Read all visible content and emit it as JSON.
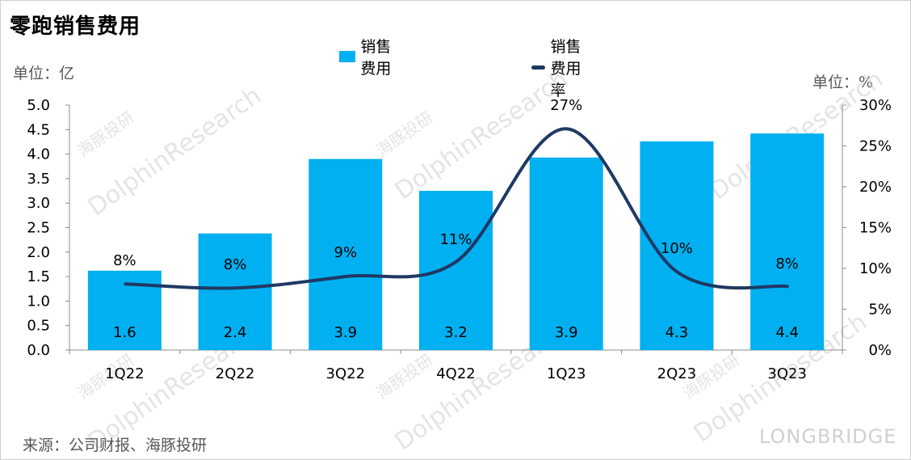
{
  "chart_data": {
    "type": "bar",
    "title": "零跑销售费用",
    "categories": [
      "1Q22",
      "2Q22",
      "3Q22",
      "4Q22",
      "1Q23",
      "2Q23",
      "3Q23"
    ],
    "series": [
      {
        "name": "销售费用",
        "type": "bar",
        "color": "#00b0f0",
        "axis": "left",
        "values": [
          1.6,
          2.4,
          3.9,
          3.2,
          3.9,
          4.3,
          4.4
        ],
        "labels": [
          "1.6",
          "2.4",
          "3.9",
          "3.2",
          "3.9",
          "4.3",
          "4.4"
        ],
        "actual": [
          1.62,
          2.38,
          3.9,
          3.25,
          3.93,
          4.26,
          4.42
        ]
      },
      {
        "name": "销售费用率",
        "type": "line",
        "color": "#1f3864",
        "axis": "right",
        "values": [
          8.1,
          7.6,
          9.0,
          10.8,
          27.1,
          9.6,
          7.8
        ],
        "labels": [
          "8%",
          "8%",
          "9%",
          "11%",
          "27%",
          "10%",
          "8%"
        ]
      }
    ],
    "y_left": {
      "min": 0,
      "max": 5,
      "step": 0.5,
      "ticks": [
        "0.0",
        "0.5",
        "1.0",
        "1.5",
        "2.0",
        "2.5",
        "3.0",
        "3.5",
        "4.0",
        "4.5",
        "5.0"
      ]
    },
    "y_right": {
      "min": 0,
      "max": 30,
      "step": 5,
      "ticks": [
        "0%",
        "5%",
        "10%",
        "15%",
        "20%",
        "25%",
        "30%"
      ]
    },
    "ylabel_left": "单位：亿",
    "ylabel_right": "单位：%",
    "legend_position": "top-center",
    "grid": false
  },
  "source": "来源：公司财报、海豚投研",
  "watermarks": {
    "en": "DolphinResearch",
    "cn": "海豚投研",
    "brand": "LONGBRIDGE"
  }
}
